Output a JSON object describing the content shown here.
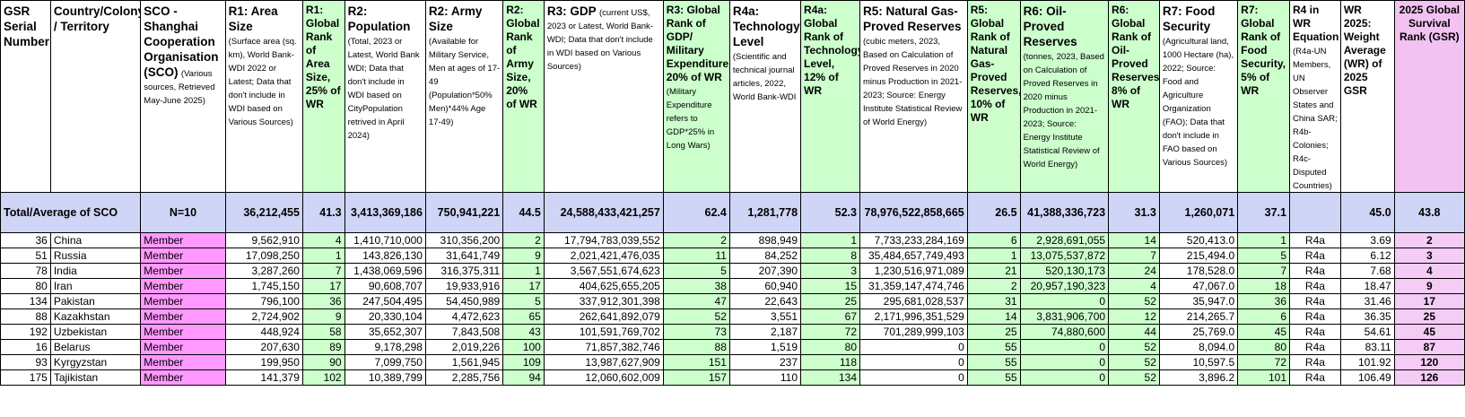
{
  "headers": {
    "gsr_serial": "GSR Serial Number",
    "country": "Country/Colony / Territory",
    "sco_title": "SCO - Shanghai Cooperation Organisation (SCO)",
    "sco_sub": "(Various sources, Retrieved May-June 2025)",
    "r1_title": "R1: Area Size",
    "r1_sub": "(Surface area (sq. km), World Bank-WDI 2022 or Latest; Data that don't include in WDI based on Various Sources)",
    "r1_rank": "R1: Global Rank of Area Size, 25% of WR",
    "r2pop_title": "R2: Population",
    "r2pop_sub": "(Total, 2023 or Latest, World Bank WDI; Data that don't include in WDI based on CityPopulation retrived in April 2024)",
    "r2army_title": "R2: Army Size",
    "r2army_sub": "(Available for Military Service, Men at ages of 17-49 (Population*50% Men)*44% Age 17-49)",
    "r2_rank": "R2: Global Rank of Army Size, 20% of WR",
    "r3_title": "R3: GDP",
    "r3_sub": "(current US$, 2023 or Latest, World Bank-WDI; Data that don't include in WDI based on Various Sources)",
    "r3_rank": "R3: Global Rank of GDP/ Military Expenditure, 20% of WR",
    "r3_rank_sub": "(Military Expenditure refers to GDP*25% in Long Wars)",
    "r4a_title": "R4a: Technology Level",
    "r4a_sub": "(Scientific and technical journal articles, 2022, World Bank-WDI",
    "r4a_rank": "R4a: Global Rank of Technology Level, 12% of WR",
    "r5_title": "R5: Natural Gas-Proved Reserves",
    "r5_sub": "(cubic meters, 2023, Based on Calculation of Proved Reserves in 2020 minus Production in 2021-2023; Source: Energy Institute Statistical Review of World Energy)",
    "r5_rank": "R5: Global Rank of Natural Gas-Proved Reserves, 10% of WR",
    "r6_title": "R6: Oil-Proved Reserves",
    "r6_sub": "(tonnes, 2023, Based on Calculation of Proved Reserves in 2020 minus Production in 2021-2023; Source: Energy Institute Statistical Review of World Energy)",
    "r6_rank": "R6: Global Rank of Oil-Proved Reserves, 8% of WR",
    "r7_title": "R7: Food Security",
    "r7_sub": "(Agricultural land, 1000 Hectare (ha), 2022; Source: Food and Agriculture Organization (FAO); Data that don't include in FAO based on Various Sources)",
    "r7_rank": "R7: Global Rank of Food Security, 5% of WR",
    "r4_eq": "R4 in WR Equation",
    "r4_eq_sub": "(R4a-UN Members, UN Observer States and China SAR; R4b-Colonies; R4c-Disputed Countries)",
    "wr": "WR 2025: Weight Average (WR) of 2025 GSR",
    "gsr": "2025 Global Survival Rank (GSR)"
  },
  "total": {
    "label": "Total/Average of SCO",
    "n": "N=10",
    "area": "36,212,455",
    "area_rank": "41.3",
    "pop": "3,413,369,186",
    "army": "750,941,221",
    "army_rank": "44.5",
    "gdp": "24,588,433,421,257",
    "gdp_rank": "62.4",
    "tech": "1,281,778",
    "tech_rank": "52.3",
    "gas": "78,976,522,858,665",
    "gas_rank": "26.5",
    "oil": "41,388,336,723",
    "oil_rank": "31.3",
    "food": "1,260,071",
    "food_rank": "37.1",
    "wr": "45.0",
    "gsr": "43.8"
  },
  "rows": [
    {
      "serial": "36",
      "country": "China",
      "status": "Member",
      "area": "9,562,910",
      "area_rank": "4",
      "pop": "1,410,710,000",
      "army": "310,356,200",
      "army_rank": "2",
      "gdp": "17,794,783,039,552",
      "gdp_rank": "2",
      "tech": "898,949",
      "tech_rank": "1",
      "gas": "7,733,233,284,169",
      "gas_rank": "6",
      "oil": "2,928,691,055",
      "oil_rank": "14",
      "food": "520,413.0",
      "food_rank": "1",
      "eq": "R4a",
      "wr": "3.69",
      "gsr": "2"
    },
    {
      "serial": "51",
      "country": "Russia",
      "status": "Member",
      "area": "17,098,250",
      "area_rank": "1",
      "pop": "143,826,130",
      "army": "31,641,749",
      "army_rank": "9",
      "gdp": "2,021,421,476,035",
      "gdp_rank": "11",
      "tech": "84,252",
      "tech_rank": "8",
      "gas": "35,484,657,749,493",
      "gas_rank": "1",
      "oil": "13,075,537,872",
      "oil_rank": "7",
      "food": "215,494.0",
      "food_rank": "5",
      "eq": "R4a",
      "wr": "6.12",
      "gsr": "3"
    },
    {
      "serial": "78",
      "country": "India",
      "status": "Member",
      "area": "3,287,260",
      "area_rank": "7",
      "pop": "1,438,069,596",
      "army": "316,375,311",
      "army_rank": "1",
      "gdp": "3,567,551,674,623",
      "gdp_rank": "5",
      "tech": "207,390",
      "tech_rank": "3",
      "gas": "1,230,516,971,089",
      "gas_rank": "21",
      "oil": "520,130,173",
      "oil_rank": "24",
      "food": "178,528.0",
      "food_rank": "7",
      "eq": "R4a",
      "wr": "7.68",
      "gsr": "4"
    },
    {
      "serial": "80",
      "country": "Iran",
      "status": "Member",
      "area": "1,745,150",
      "area_rank": "17",
      "pop": "90,608,707",
      "army": "19,933,916",
      "army_rank": "17",
      "gdp": "404,625,655,205",
      "gdp_rank": "38",
      "tech": "60,940",
      "tech_rank": "15",
      "gas": "31,359,147,474,746",
      "gas_rank": "2",
      "oil": "20,957,190,323",
      "oil_rank": "4",
      "food": "47,067.0",
      "food_rank": "18",
      "eq": "R4a",
      "wr": "18.47",
      "gsr": "9"
    },
    {
      "serial": "134",
      "country": "Pakistan",
      "status": "Member",
      "area": "796,100",
      "area_rank": "36",
      "pop": "247,504,495",
      "army": "54,450,989",
      "army_rank": "5",
      "gdp": "337,912,301,398",
      "gdp_rank": "47",
      "tech": "22,643",
      "tech_rank": "25",
      "gas": "295,681,028,537",
      "gas_rank": "31",
      "oil": "0",
      "oil_rank": "52",
      "food": "35,947.0",
      "food_rank": "36",
      "eq": "R4a",
      "wr": "31.46",
      "gsr": "17"
    },
    {
      "serial": "88",
      "country": "Kazakhstan",
      "status": "Member",
      "area": "2,724,902",
      "area_rank": "9",
      "pop": "20,330,104",
      "army": "4,472,623",
      "army_rank": "65",
      "gdp": "262,641,892,079",
      "gdp_rank": "52",
      "tech": "3,551",
      "tech_rank": "67",
      "gas": "2,171,996,351,529",
      "gas_rank": "14",
      "oil": "3,831,906,700",
      "oil_rank": "12",
      "food": "214,265.7",
      "food_rank": "6",
      "eq": "R4a",
      "wr": "36.35",
      "gsr": "25"
    },
    {
      "serial": "192",
      "country": "Uzbekistan",
      "status": "Member",
      "area": "448,924",
      "area_rank": "58",
      "pop": "35,652,307",
      "army": "7,843,508",
      "army_rank": "43",
      "gdp": "101,591,769,702",
      "gdp_rank": "73",
      "tech": "2,187",
      "tech_rank": "72",
      "gas": "701,289,999,103",
      "gas_rank": "25",
      "oil": "74,880,600",
      "oil_rank": "44",
      "food": "25,769.0",
      "food_rank": "45",
      "eq": "R4a",
      "wr": "54.61",
      "gsr": "45"
    },
    {
      "serial": "16",
      "country": "Belarus",
      "status": "Member",
      "area": "207,630",
      "area_rank": "89",
      "pop": "9,178,298",
      "army": "2,019,226",
      "army_rank": "100",
      "gdp": "71,857,382,746",
      "gdp_rank": "88",
      "tech": "1,519",
      "tech_rank": "80",
      "gas": "0",
      "gas_rank": "55",
      "oil": "0",
      "oil_rank": "52",
      "food": "8,094.0",
      "food_rank": "80",
      "eq": "R4a",
      "wr": "83.11",
      "gsr": "87"
    },
    {
      "serial": "93",
      "country": "Kyrgyzstan",
      "status": "Member",
      "area": "199,950",
      "area_rank": "90",
      "pop": "7,099,750",
      "army": "1,561,945",
      "army_rank": "109",
      "gdp": "13,987,627,909",
      "gdp_rank": "151",
      "tech": "237",
      "tech_rank": "118",
      "gas": "0",
      "gas_rank": "55",
      "oil": "0",
      "oil_rank": "52",
      "food": "10,597.5",
      "food_rank": "72",
      "eq": "R4a",
      "wr": "101.92",
      "gsr": "120"
    },
    {
      "serial": "175",
      "country": "Tajikistan",
      "status": "Member",
      "area": "141,379",
      "area_rank": "102",
      "pop": "10,389,799",
      "army": "2,285,756",
      "army_rank": "94",
      "gdp": "12,060,602,009",
      "gdp_rank": "157",
      "tech": "110",
      "tech_rank": "134",
      "gas": "0",
      "gas_rank": "55",
      "oil": "0",
      "oil_rank": "52",
      "food": "3,896.2",
      "food_rank": "101",
      "eq": "R4a",
      "wr": "106.49",
      "gsr": "126"
    }
  ]
}
